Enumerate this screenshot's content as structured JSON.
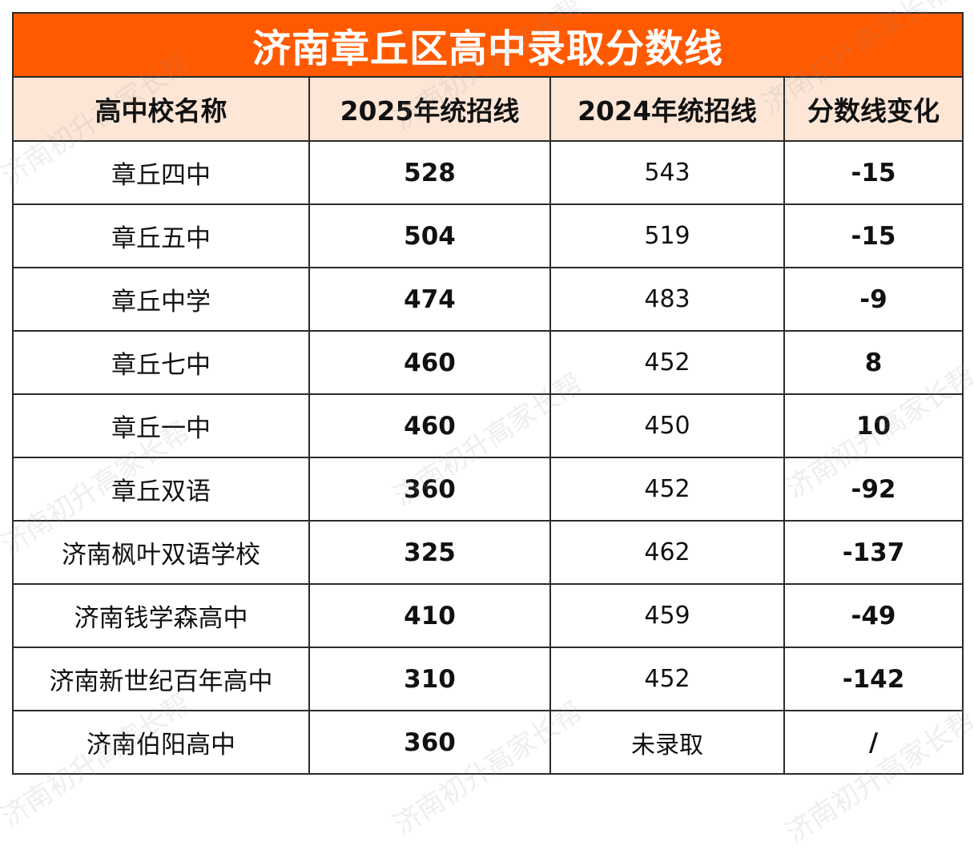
{
  "title": "济南章丘区高中录取分数线",
  "headers": {
    "school": "高中校名称",
    "line_2025": "2025年统招线",
    "line_2024": "2024年统招线",
    "change": "分数线变化"
  },
  "rows": [
    {
      "school": "章丘四中",
      "line_2025": "528",
      "line_2024": "543",
      "change": "-15"
    },
    {
      "school": "章丘五中",
      "line_2025": "504",
      "line_2024": "519",
      "change": "-15"
    },
    {
      "school": "章丘中学",
      "line_2025": "474",
      "line_2024": "483",
      "change": "-9"
    },
    {
      "school": "章丘七中",
      "line_2025": "460",
      "line_2024": "452",
      "change": "8"
    },
    {
      "school": "章丘一中",
      "line_2025": "460",
      "line_2024": "450",
      "change": "10"
    },
    {
      "school": "章丘双语",
      "line_2025": "360",
      "line_2024": "452",
      "change": "-92"
    },
    {
      "school": "济南枫叶双语学校",
      "line_2025": "325",
      "line_2024": "462",
      "change": "-137"
    },
    {
      "school": "济南钱学森高中",
      "line_2025": "410",
      "line_2024": "459",
      "change": "-49"
    },
    {
      "school": "济南新世纪百年高中",
      "line_2025": "310",
      "line_2024": "452",
      "change": "-142"
    },
    {
      "school": "济南伯阳高中",
      "line_2025": "360",
      "line_2024": "未录取",
      "change": "/"
    }
  ],
  "colors": {
    "title_bg": "#ff5a00",
    "header_bg": "#fde6d6",
    "border": "#2b2b2b"
  },
  "watermark": "济南初升高家长帮"
}
